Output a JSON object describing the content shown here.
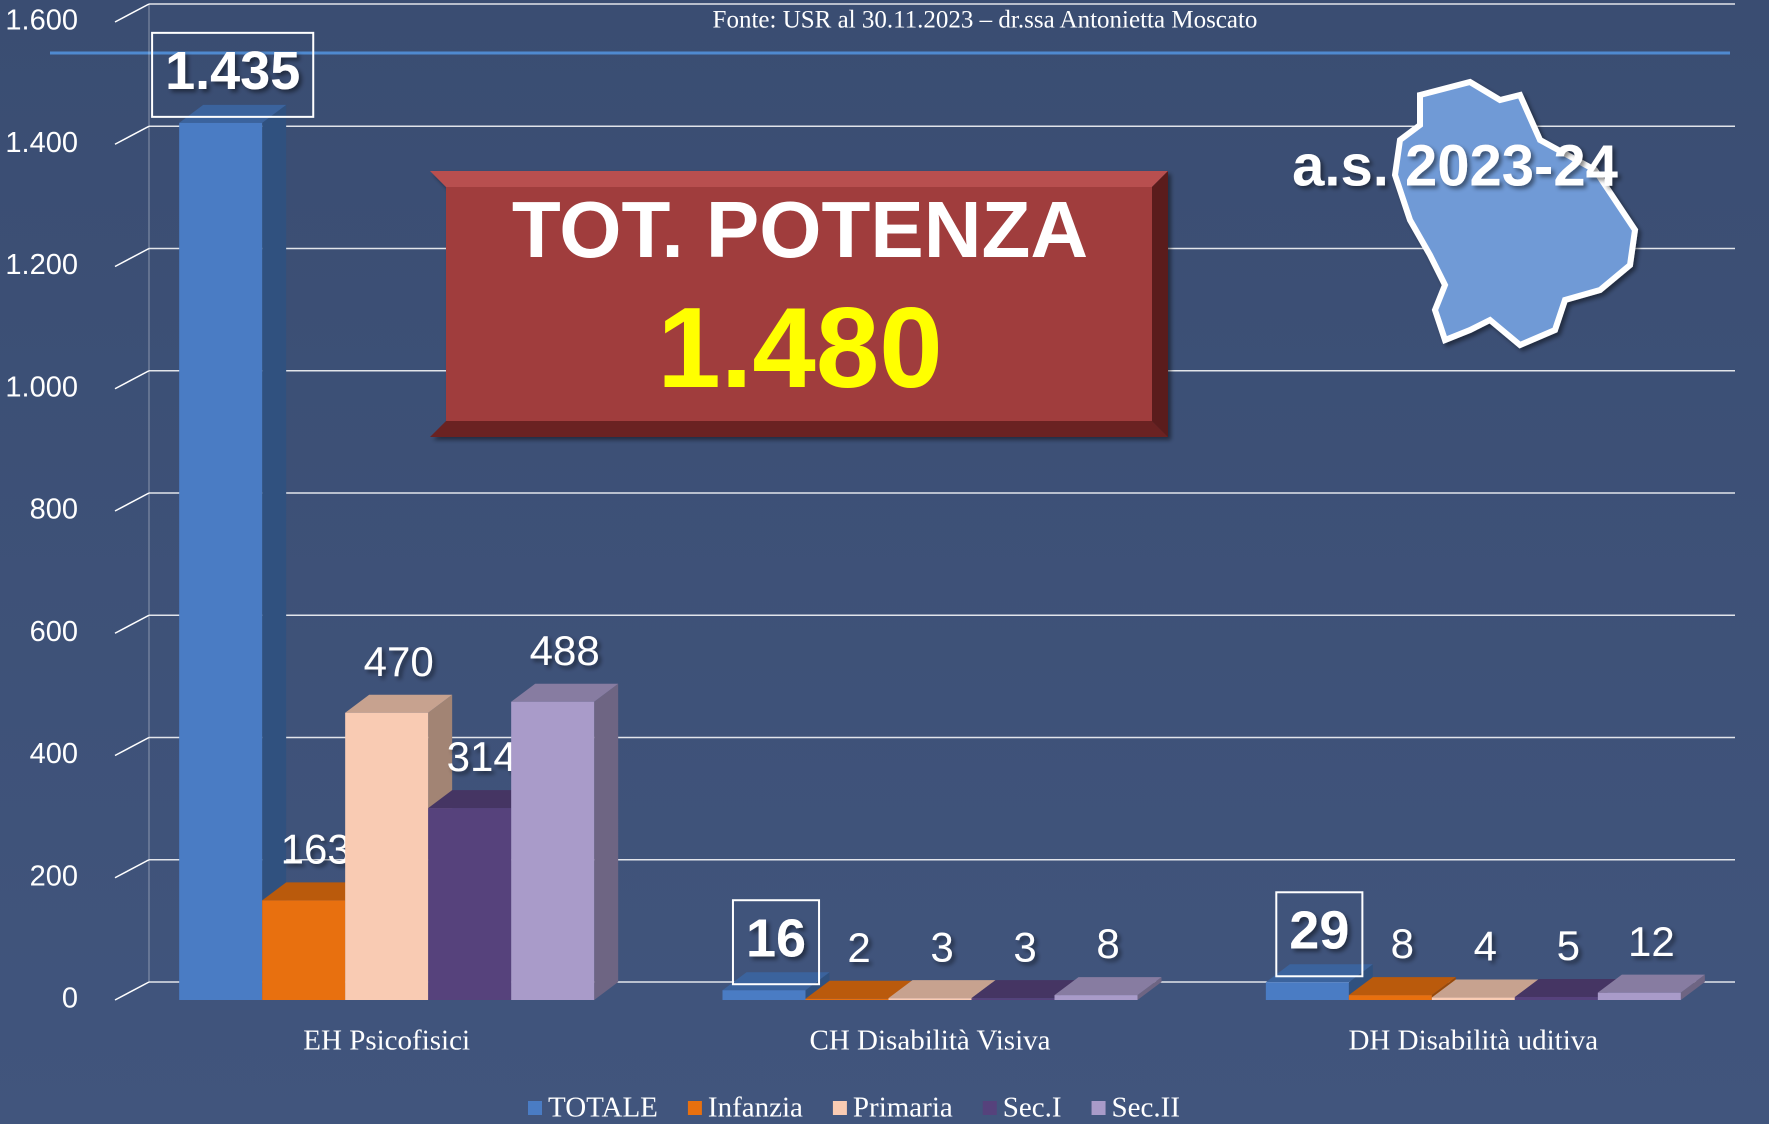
{
  "chart_data": {
    "type": "bar",
    "source": "Fonte: USR al 30.11.2023 – dr.ssa Antonietta Moscato",
    "annotations": {
      "box_title": "TOT. POTENZA",
      "box_value": "1.480",
      "year": "a.s. 2023-24"
    },
    "categories": [
      "EH Psicofisici",
      "CH Disabilità Visiva",
      "DH Disabilità uditiva"
    ],
    "series": [
      {
        "name": "TOTALE",
        "color": "#4a7cc4",
        "values": [
          1435,
          16,
          29
        ],
        "value_labels": [
          "1.435",
          "16",
          "29"
        ]
      },
      {
        "name": "Infanzia",
        "color": "#e8700f",
        "values": [
          163,
          2,
          8
        ]
      },
      {
        "name": "Primaria",
        "color": "#f9cbb3",
        "values": [
          470,
          3,
          4
        ]
      },
      {
        "name": "Sec.I",
        "color": "#56427c",
        "values": [
          314,
          3,
          5
        ]
      },
      {
        "name": "Sec.II",
        "color": "#a99bc9",
        "values": [
          488,
          8,
          12
        ]
      }
    ],
    "ylim": [
      0,
      1600
    ],
    "yticks": [
      0,
      200,
      400,
      600,
      800,
      {
        "value": 1000,
        "label": "1.000"
      },
      {
        "value": 1200,
        "label": "1.200"
      },
      {
        "value": 1400,
        "label": "1.400"
      },
      {
        "value": 1600,
        "label": "1.600"
      }
    ],
    "grid": true,
    "legend": "bottom"
  }
}
